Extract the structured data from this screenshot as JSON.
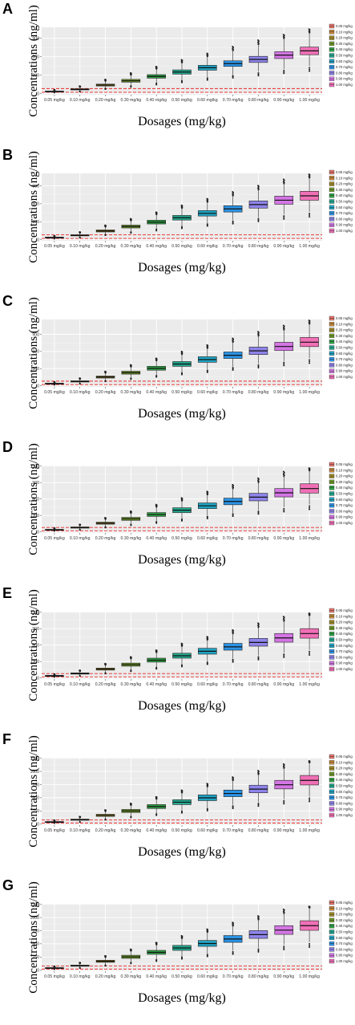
{
  "colors": [
    "#E8736B",
    "#C8893A",
    "#A28D28",
    "#6F9A2A",
    "#2FA346",
    "#22A88F",
    "#21A3C3",
    "#2B94E6",
    "#8E84EA",
    "#D476E4",
    "#F070B6"
  ],
  "legend": [
    "0.05 mg/kg",
    "0.10 mg/kg",
    "0.20 mg/kg",
    "0.30 mg/kg",
    "0.40 mg/kg",
    "0.50 mg/kg",
    "0.60 mg/kg",
    "0.70 mg/kg",
    "0.80 mg/kg",
    "0.90 mg/kg",
    "1.00 mg/kg"
  ],
  "chart_data": [
    {
      "panel": "A",
      "type": "box",
      "xlabel": "Dosages (mg/kg)",
      "ylabel": "Concentrations (ng/ml)",
      "categories": [
        "0.05 mg/kg",
        "0.10 mg/kg",
        "0.20 mg/kg",
        "0.30 mg/kg",
        "0.40 mg/kg",
        "0.50 mg/kg",
        "0.60 mg/kg",
        "0.70 mg/kg",
        "0.80 mg/kg",
        "0.90 mg/kg",
        "1.00 mg/kg"
      ],
      "ylim": [
        -20,
        1080
      ],
      "yticks": [
        0,
        300,
        600,
        900
      ],
      "reference_lines": [
        20,
        80
      ],
      "medians": [
        33,
        67,
        137,
        207,
        278,
        350,
        420,
        487,
        556,
        627,
        695
      ],
      "q1": [
        28,
        58,
        122,
        185,
        250,
        315,
        380,
        442,
        506,
        570,
        633
      ],
      "q3": [
        39,
        77,
        153,
        230,
        307,
        385,
        460,
        533,
        606,
        682,
        757
      ],
      "whisker_low": [
        18,
        38,
        85,
        130,
        175,
        220,
        268,
        310,
        355,
        400,
        445
      ],
      "whisker_high": [
        52,
        104,
        200,
        296,
        395,
        494,
        595,
        690,
        786,
        885,
        980
      ],
      "outlier_max": [
        60,
        120,
        228,
        335,
        440,
        550,
        655,
        765,
        870,
        960,
        1050
      ]
    },
    {
      "panel": "B",
      "type": "box",
      "xlabel": "Dosages (mg/kg)",
      "ylabel": "Concentrations (ng/ml)",
      "categories": [
        "0.05 mg/kg",
        "0.10 mg/kg",
        "0.20 mg/kg",
        "0.30 mg/kg",
        "0.40 mg/kg",
        "0.50 mg/kg",
        "0.60 mg/kg",
        "0.70 mg/kg",
        "0.80 mg/kg",
        "0.90 mg/kg",
        "1.00 mg/kg"
      ],
      "ylim": [
        -20,
        1110
      ],
      "yticks": [
        0,
        300,
        600,
        900
      ],
      "reference_lines": [
        20,
        80
      ],
      "medians": [
        35,
        71,
        145,
        219,
        293,
        367,
        440,
        515,
        587,
        660,
        733
      ],
      "q1": [
        30,
        62,
        128,
        195,
        262,
        328,
        395,
        462,
        528,
        593,
        660
      ],
      "q3": [
        41,
        81,
        162,
        243,
        325,
        405,
        487,
        568,
        648,
        728,
        810
      ],
      "whisker_low": [
        19,
        40,
        88,
        135,
        183,
        230,
        278,
        325,
        372,
        420,
        466
      ],
      "whisker_high": [
        55,
        110,
        210,
        312,
        415,
        518,
        620,
        722,
        822,
        925,
        1025
      ],
      "outlier_max": [
        64,
        128,
        240,
        350,
        460,
        575,
        685,
        800,
        905,
        1010,
        1095
      ]
    },
    {
      "panel": "C",
      "type": "box",
      "xlabel": "Dosages (mg/kg)",
      "ylabel": "Concentrations (ng/ml)",
      "categories": [
        "0.05 mg/kg",
        "0.10 mg/kg",
        "0.20 mg/kg",
        "0.30 mg/kg",
        "0.40 mg/kg",
        "0.50 mg/kg",
        "0.60 mg/kg",
        "0.70 mg/kg",
        "0.80 mg/kg",
        "0.90 mg/kg",
        "1.00 mg/kg"
      ],
      "ylim": [
        -20,
        1160
      ],
      "yticks": [
        0,
        300,
        600,
        900
      ],
      "reference_lines": [
        20,
        80
      ],
      "medians": [
        38,
        75,
        152,
        228,
        305,
        380,
        458,
        533,
        610,
        687,
        762
      ],
      "q1": [
        32,
        65,
        134,
        203,
        272,
        340,
        410,
        478,
        546,
        615,
        685
      ],
      "q3": [
        44,
        86,
        170,
        254,
        340,
        423,
        508,
        592,
        676,
        760,
        845
      ],
      "whisker_low": [
        20,
        42,
        92,
        140,
        188,
        238,
        286,
        335,
        384,
        432,
        482
      ],
      "whisker_high": [
        58,
        115,
        220,
        326,
        432,
        540,
        646,
        752,
        858,
        964,
        1070
      ],
      "outlier_max": [
        68,
        132,
        250,
        365,
        480,
        600,
        712,
        830,
        945,
        1055,
        1145
      ]
    },
    {
      "panel": "D",
      "type": "box",
      "xlabel": "Dosages (mg/kg)",
      "ylabel": "Concentrations (ng/ml)",
      "categories": [
        "0.05 mg/kg",
        "0.10 mg/kg",
        "0.20 mg/kg",
        "0.30 mg/kg",
        "0.40 mg/kg",
        "0.50 mg/kg",
        "0.60 mg/kg",
        "0.70 mg/kg",
        "0.80 mg/kg",
        "0.90 mg/kg",
        "1.00 mg/kg"
      ],
      "ylim": [
        -20,
        1210
      ],
      "yticks": [
        0,
        300,
        600,
        900,
        1200
      ],
      "reference_lines": [
        20,
        80
      ],
      "medians": [
        39,
        79,
        158,
        237,
        316,
        395,
        475,
        555,
        633,
        712,
        790
      ],
      "q1": [
        34,
        68,
        140,
        210,
        282,
        352,
        424,
        495,
        566,
        638,
        708
      ],
      "q3": [
        45,
        90,
        177,
        264,
        352,
        440,
        528,
        615,
        703,
        790,
        877
      ],
      "whisker_low": [
        21,
        44,
        95,
        145,
        195,
        246,
        296,
        348,
        398,
        448,
        500
      ],
      "whisker_high": [
        60,
        118,
        228,
        338,
        448,
        558,
        668,
        780,
        888,
        998,
        1108
      ],
      "outlier_max": [
        70,
        136,
        258,
        378,
        498,
        618,
        738,
        860,
        980,
        1100,
        1165
      ]
    },
    {
      "panel": "E",
      "type": "box",
      "xlabel": "Dosages (mg/kg)",
      "ylabel": "Concentrations (ng/ml)",
      "categories": [
        "0.05 mg/kg",
        "0.10 mg/kg",
        "0.20 mg/kg",
        "0.30 mg/kg",
        "0.40 mg/kg",
        "0.50 mg/kg",
        "0.60 mg/kg",
        "0.70 mg/kg",
        "0.80 mg/kg",
        "0.90 mg/kg",
        "1.00 mg/kg"
      ],
      "ylim": [
        -20,
        1210
      ],
      "yticks": [
        0,
        300,
        600,
        900,
        1200
      ],
      "reference_lines": [
        20,
        80
      ],
      "medians": [
        40,
        81,
        162,
        243,
        324,
        405,
        487,
        568,
        648,
        730,
        810
      ],
      "q1": [
        35,
        70,
        143,
        215,
        289,
        361,
        434,
        507,
        580,
        653,
        726
      ],
      "q3": [
        46,
        92,
        181,
        271,
        361,
        451,
        541,
        631,
        721,
        811,
        900
      ],
      "whisker_low": [
        22,
        45,
        97,
        148,
        200,
        252,
        304,
        356,
        408,
        460,
        512
      ],
      "whisker_high": [
        61,
        121,
        233,
        346,
        458,
        571,
        684,
        797,
        910,
        1022,
        1135
      ],
      "outlier_max": [
        72,
        140,
        262,
        385,
        508,
        630,
        752,
        875,
        1000,
        1120,
        1180
      ]
    },
    {
      "panel": "F",
      "type": "box",
      "xlabel": "Dosages (mg/kg)",
      "ylabel": "Concentrations (ng/ml)",
      "categories": [
        "0.05 mg/kg",
        "0.10 mg/kg",
        "0.20 mg/kg",
        "0.30 mg/kg",
        "0.40 mg/kg",
        "0.50 mg/kg",
        "0.60 mg/kg",
        "0.70 mg/kg",
        "0.80 mg/kg",
        "0.90 mg/kg",
        "1.00 mg/kg"
      ],
      "ylim": [
        -20,
        1260
      ],
      "yticks": [
        0,
        250,
        500,
        750,
        1000,
        1250
      ],
      "reference_lines": [
        20,
        80
      ],
      "medians": [
        41,
        83,
        166,
        249,
        332,
        415,
        498,
        581,
        664,
        747,
        830
      ],
      "q1": [
        36,
        72,
        146,
        220,
        296,
        370,
        445,
        520,
        594,
        668,
        743
      ],
      "q3": [
        47,
        94,
        186,
        278,
        370,
        462,
        555,
        646,
        739,
        830,
        923
      ],
      "whisker_low": [
        22,
        46,
        99,
        151,
        204,
        258,
        311,
        364,
        417,
        470,
        523
      ],
      "whisker_high": [
        62,
        124,
        239,
        354,
        469,
        585,
        700,
        816,
        930,
        1046,
        1161
      ],
      "outlier_max": [
        73,
        142,
        268,
        393,
        518,
        642,
        768,
        892,
        1015,
        1140,
        1200
      ]
    },
    {
      "panel": "G",
      "type": "box",
      "xlabel": "Dosages (mg/kg)",
      "ylabel": "Concentrations (ng/ml)",
      "categories": [
        "0.05 mg/kg",
        "0.10 mg/kg",
        "0.20 mg/kg",
        "0.30 mg/kg",
        "0.40 mg/kg",
        "0.50 mg/kg",
        "0.60 mg/kg",
        "0.70 mg/kg",
        "0.80 mg/kg",
        "0.90 mg/kg",
        "1.00 mg/kg"
      ],
      "ylim": [
        -20,
        1260
      ],
      "yticks": [
        0,
        250,
        500,
        750,
        1000,
        1250
      ],
      "reference_lines": [
        20,
        80
      ],
      "medians": [
        42,
        84,
        169,
        253,
        338,
        422,
        506,
        591,
        675,
        760,
        845
      ],
      "q1": [
        37,
        74,
        149,
        224,
        301,
        376,
        452,
        528,
        604,
        680,
        756
      ],
      "q3": [
        48,
        96,
        189,
        283,
        376,
        470,
        564,
        657,
        751,
        845,
        938
      ],
      "whisker_low": [
        23,
        47,
        101,
        154,
        208,
        262,
        316,
        370,
        424,
        478,
        532
      ],
      "whisker_high": [
        63,
        126,
        243,
        360,
        477,
        595,
        712,
        829,
        946,
        1063,
        1180
      ],
      "outlier_max": [
        74,
        144,
        272,
        398,
        525,
        652,
        778,
        905,
        1030,
        1155,
        1210
      ]
    }
  ]
}
